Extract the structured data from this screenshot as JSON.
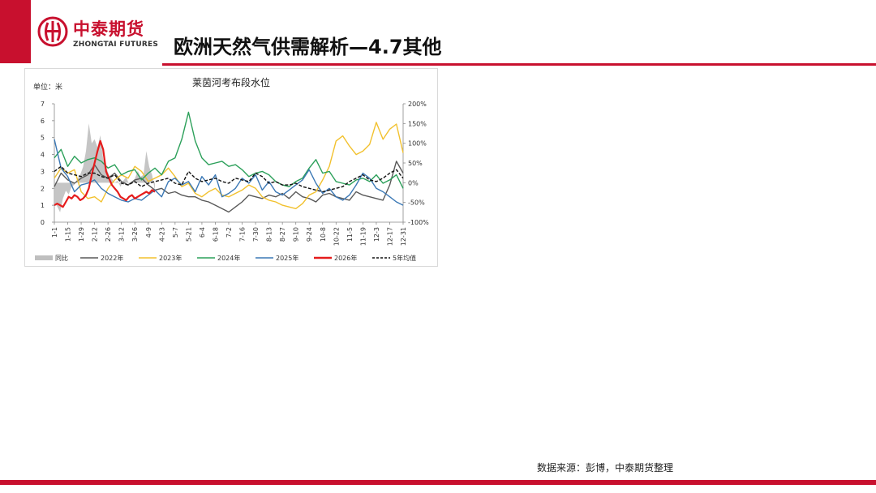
{
  "brand": {
    "name_cn": "中泰期货",
    "name_en": "ZHONGTAI FUTURES",
    "color": "#c8102e"
  },
  "page": {
    "title": "欧洲天然气供需解析—4.7其他",
    "source": "数据来源：彭博，中泰期货整理"
  },
  "chart_data": {
    "type": "line",
    "title": "莱茵河考布段水位",
    "unit_label": "单位：米",
    "left_axis": {
      "min": 0,
      "max": 7,
      "ticks": [
        "0",
        "1",
        "2",
        "3",
        "4",
        "5",
        "6",
        "7"
      ]
    },
    "right_axis": {
      "min": -100,
      "max": 200,
      "ticks": [
        "-100%",
        "-50%",
        "0%",
        "50%",
        "100%",
        "150%",
        "200%"
      ]
    },
    "x_ticks": [
      "1-1",
      "1-15",
      "1-29",
      "2-12",
      "2-26",
      "3-12",
      "3-26",
      "4-9",
      "4-23",
      "5-7",
      "5-21",
      "6-4",
      "6-18",
      "7-2",
      "7-16",
      "7-30",
      "8-13",
      "8-27",
      "9-10",
      "9-24",
      "10-8",
      "10-22",
      "11-5",
      "11-19",
      "12-3",
      "12-17",
      "12-31"
    ],
    "legend": [
      "同比",
      "2022年",
      "2023年",
      "2024年",
      "2025年",
      "2026年",
      "5年均值"
    ],
    "colors": {
      "同比": "#bfbfbf",
      "2022年": "#595959",
      "2023年": "#f2c12e",
      "2024年": "#2ca05a",
      "2025年": "#3b78b5",
      "2026年": "#e51c1c",
      "5年均值": "#111111"
    },
    "series": [
      {
        "name": "同比",
        "axis": "right",
        "kind": "area",
        "x": [
          0,
          3,
          6,
          9,
          12,
          15,
          18,
          21,
          24,
          27,
          30,
          33,
          36,
          39,
          42,
          45,
          48,
          51,
          54,
          57,
          60,
          63,
          66,
          69,
          72,
          75,
          78,
          81,
          84,
          87,
          90,
          93,
          96,
          99,
          102,
          105
        ],
        "values": [
          -50,
          -60,
          -75,
          -40,
          -20,
          -30,
          -10,
          -5,
          10,
          20,
          40,
          80,
          150,
          100,
          110,
          90,
          120,
          60,
          40,
          20,
          10,
          0,
          5,
          -10,
          5,
          15,
          -5,
          0,
          10,
          30,
          15,
          20,
          80,
          40,
          20,
          -20
        ]
      },
      {
        "name": "2022年",
        "axis": "left",
        "x": [
          0,
          7,
          14,
          21,
          28,
          35,
          42,
          49,
          56,
          63,
          70,
          77,
          84,
          91,
          98,
          105,
          112,
          119,
          126,
          133,
          140,
          147,
          154,
          161,
          168,
          175,
          182,
          189,
          196,
          203,
          210,
          217,
          224,
          231,
          238,
          245,
          252,
          259,
          266,
          273,
          280,
          287,
          294,
          301,
          308,
          315,
          322,
          329,
          336,
          343,
          350,
          357,
          364
        ],
        "values": [
          2.1,
          2.9,
          2.5,
          2.3,
          2.6,
          2.8,
          3.4,
          2.8,
          2.6,
          2.9,
          2.4,
          2.2,
          2.5,
          2.6,
          2.2,
          1.9,
          2.0,
          1.7,
          1.8,
          1.6,
          1.5,
          1.5,
          1.3,
          1.2,
          1.0,
          0.8,
          0.6,
          0.9,
          1.2,
          1.6,
          1.5,
          1.4,
          1.6,
          1.5,
          1.7,
          1.4,
          1.8,
          1.5,
          1.4,
          1.2,
          1.6,
          1.7,
          1.5,
          1.4,
          1.3,
          1.8,
          1.6,
          1.5,
          1.4,
          1.3,
          2.2,
          3.6,
          2.9
        ]
      },
      {
        "name": "2023年",
        "axis": "left",
        "x": [
          0,
          7,
          14,
          21,
          28,
          35,
          42,
          49,
          56,
          63,
          70,
          77,
          84,
          91,
          98,
          105,
          112,
          119,
          126,
          133,
          140,
          147,
          154,
          161,
          168,
          175,
          182,
          189,
          196,
          203,
          210,
          217,
          224,
          231,
          238,
          245,
          252,
          259,
          266,
          273,
          280,
          287,
          294,
          301,
          308,
          315,
          322,
          329,
          336,
          343,
          350,
          357,
          364
        ],
        "values": [
          2.6,
          3.2,
          2.9,
          3.1,
          1.8,
          1.4,
          1.5,
          1.2,
          2.0,
          2.5,
          2.8,
          2.6,
          3.3,
          3.0,
          2.4,
          2.6,
          2.8,
          3.2,
          2.7,
          2.1,
          2.3,
          1.7,
          1.5,
          1.8,
          2.0,
          1.6,
          1.5,
          1.7,
          1.9,
          2.2,
          2.0,
          1.5,
          1.3,
          1.2,
          1.0,
          0.9,
          0.8,
          1.1,
          1.6,
          1.8,
          2.5,
          3.3,
          4.8,
          5.1,
          4.5,
          4.0,
          4.2,
          4.6,
          5.9,
          4.9,
          5.5,
          5.8,
          4.1
        ]
      },
      {
        "name": "2024年",
        "axis": "left",
        "x": [
          0,
          7,
          14,
          21,
          28,
          35,
          42,
          49,
          56,
          63,
          70,
          77,
          84,
          91,
          98,
          105,
          112,
          119,
          126,
          133,
          140,
          147,
          154,
          161,
          168,
          175,
          182,
          189,
          196,
          203,
          210,
          217,
          224,
          231,
          238,
          245,
          252,
          259,
          266,
          273,
          280,
          287,
          294,
          301,
          308,
          315,
          322,
          329,
          336,
          343,
          350,
          357,
          364
        ],
        "values": [
          3.8,
          4.3,
          3.3,
          3.9,
          3.5,
          3.7,
          3.8,
          3.6,
          3.2,
          3.4,
          2.8,
          3.0,
          3.1,
          2.5,
          2.9,
          3.2,
          2.8,
          3.6,
          3.8,
          4.9,
          6.5,
          4.8,
          3.8,
          3.4,
          3.5,
          3.6,
          3.3,
          3.4,
          3.1,
          2.7,
          2.9,
          3.0,
          2.8,
          2.4,
          2.2,
          2.1,
          2.4,
          2.6,
          3.2,
          3.7,
          2.9,
          3.0,
          2.4,
          2.3,
          2.2,
          2.5,
          2.6,
          2.4,
          2.8,
          2.3,
          2.5,
          2.8,
          2.0
        ]
      },
      {
        "name": "2025年",
        "axis": "left",
        "x": [
          0,
          7,
          14,
          21,
          28,
          35,
          42,
          49,
          56,
          63,
          70,
          77,
          84,
          91,
          98,
          105,
          112,
          119,
          126,
          133,
          140,
          147,
          154,
          161,
          168,
          175,
          182,
          189,
          196,
          203,
          210,
          217,
          224,
          231,
          238,
          245,
          252,
          259,
          266,
          273,
          280,
          287,
          294,
          301,
          308,
          315,
          322,
          329,
          336,
          343,
          350,
          357,
          364
        ],
        "values": [
          4.9,
          3.2,
          2.7,
          1.8,
          2.2,
          2.3,
          2.5,
          2.0,
          1.7,
          1.5,
          1.3,
          1.2,
          1.4,
          1.3,
          1.6,
          1.9,
          1.5,
          2.4,
          2.6,
          2.2,
          2.4,
          1.8,
          2.7,
          2.2,
          2.8,
          1.5,
          1.7,
          2.0,
          2.6,
          2.3,
          2.8,
          1.9,
          2.4,
          1.8,
          1.6,
          1.9,
          2.2,
          2.5,
          3.1,
          2.3,
          1.7,
          2.0,
          1.5,
          1.3,
          1.6,
          2.2,
          2.9,
          2.6,
          2.0,
          1.8,
          1.5,
          1.2,
          1.0
        ]
      },
      {
        "name": "2026年",
        "axis": "left",
        "x": [
          0,
          3,
          6,
          9,
          12,
          15,
          18,
          21,
          24,
          27,
          30,
          33,
          36,
          39,
          42,
          45,
          48,
          51,
          54,
          57,
          60,
          63,
          66,
          69,
          72,
          75,
          78,
          81,
          84,
          87,
          90,
          93,
          96,
          99,
          102,
          105
        ],
        "values": [
          1.0,
          1.1,
          1.0,
          0.9,
          1.2,
          1.5,
          1.4,
          1.6,
          1.5,
          1.3,
          1.4,
          1.6,
          2.0,
          2.8,
          3.5,
          4.2,
          4.8,
          4.3,
          3.0,
          2.6,
          2.2,
          2.0,
          1.8,
          1.5,
          1.4,
          1.3,
          1.5,
          1.6,
          1.4,
          1.5,
          1.6,
          1.7,
          1.8,
          1.7,
          1.9,
          1.8
        ]
      },
      {
        "name": "5年均值",
        "axis": "left",
        "dashed": true,
        "x": [
          0,
          7,
          14,
          21,
          28,
          35,
          42,
          49,
          56,
          63,
          70,
          77,
          84,
          91,
          98,
          105,
          112,
          119,
          126,
          133,
          140,
          147,
          154,
          161,
          168,
          175,
          182,
          189,
          196,
          203,
          210,
          217,
          224,
          231,
          238,
          245,
          252,
          259,
          266,
          273,
          280,
          287,
          294,
          301,
          308,
          315,
          322,
          329,
          336,
          343,
          350,
          357,
          364
        ],
        "values": [
          3.0,
          3.3,
          2.9,
          2.8,
          2.7,
          2.9,
          2.9,
          2.7,
          2.6,
          2.8,
          2.3,
          2.2,
          2.4,
          2.1,
          2.3,
          2.4,
          2.5,
          2.6,
          2.3,
          2.2,
          3.0,
          2.6,
          2.4,
          2.5,
          2.6,
          2.4,
          2.3,
          2.6,
          2.5,
          2.4,
          2.9,
          2.7,
          2.3,
          2.4,
          2.2,
          2.2,
          2.3,
          2.1,
          2.0,
          1.9,
          1.8,
          1.9,
          2.0,
          2.1,
          2.4,
          2.6,
          2.8,
          2.5,
          2.4,
          2.6,
          2.9,
          3.1,
          2.6
        ]
      }
    ]
  }
}
